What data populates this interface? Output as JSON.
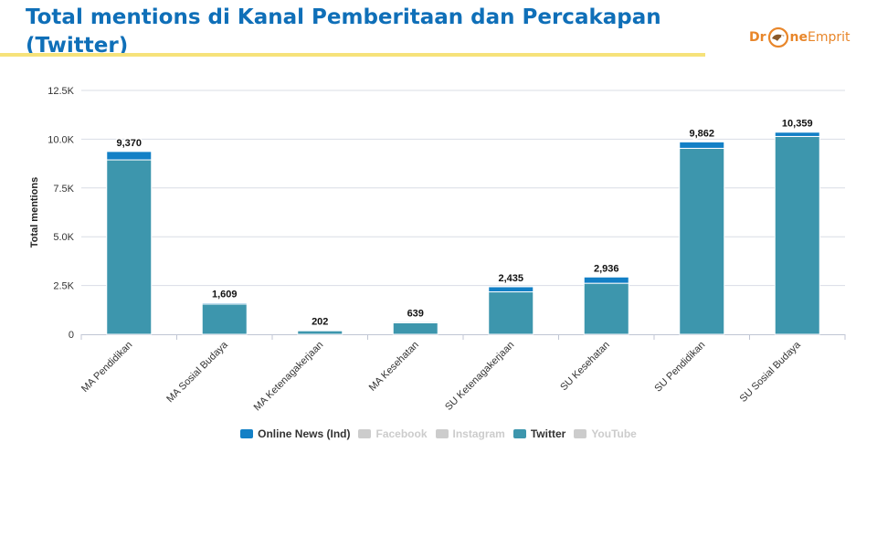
{
  "slide": {
    "title": "Total mentions di Kanal Pemberitaan dan Percakapan (Twitter)"
  },
  "logo": {
    "text_left": "Dr",
    "text_mid": "ne",
    "text_right": "Emprit",
    "icon": "eagle-icon"
  },
  "colors": {
    "title": "#0f6fb8",
    "online_news": "#1380c6",
    "twitter": "#3d96ad",
    "inactive": "#cccccc",
    "grid": "#d9dde6"
  },
  "chart_data": {
    "type": "bar",
    "stacked": true,
    "ylabel": "Total mentions",
    "xlabel": "",
    "ylim": [
      0,
      12500
    ],
    "yticks": [
      "0",
      "2.5K",
      "5.0K",
      "7.5K",
      "10.0K",
      "12.5K"
    ],
    "ytick_values": [
      0,
      2500,
      5000,
      7500,
      10000,
      12500
    ],
    "grid": true,
    "legend_position": "bottom",
    "categories": [
      "MA Pendidikan",
      "MA Sosial Budaya",
      "MA Ketenagakerjaan",
      "MA Kesehatan",
      "SU Ketenagakerjaan",
      "SU Kesehatan",
      "SU Pendidikan",
      "SU Sosial Budaya"
    ],
    "totals": [
      "9,370",
      "1,609",
      "202",
      "639",
      "2,435",
      "2,936",
      "9,862",
      "10,359"
    ],
    "series": [
      {
        "name": "Online News (Ind)",
        "color": "#1380c6",
        "active": true,
        "values": [
          430,
          60,
          20,
          50,
          260,
          320,
          330,
          220
        ]
      },
      {
        "name": "Facebook",
        "color": "#cccccc",
        "active": false,
        "values": [
          0,
          0,
          0,
          0,
          0,
          0,
          0,
          0
        ]
      },
      {
        "name": "Instagram",
        "color": "#cccccc",
        "active": false,
        "values": [
          0,
          0,
          0,
          0,
          0,
          0,
          0,
          0
        ]
      },
      {
        "name": "Twitter",
        "color": "#3d96ad",
        "active": true,
        "values": [
          8940,
          1549,
          182,
          589,
          2175,
          2616,
          9532,
          10139
        ]
      },
      {
        "name": "YouTube",
        "color": "#cccccc",
        "active": false,
        "values": [
          0,
          0,
          0,
          0,
          0,
          0,
          0,
          0
        ]
      }
    ]
  }
}
